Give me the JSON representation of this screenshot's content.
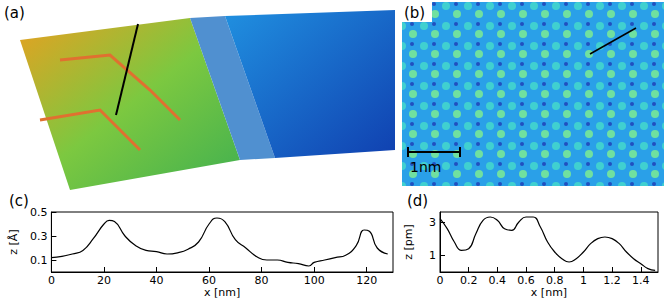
{
  "images": [
    {
      "label": "(a)"
    },
    {
      "label": "(b)",
      "scale_bar": "1nm"
    }
  ],
  "chart_data": [
    {
      "type": "line",
      "title": "(c)",
      "x_label": "x [nm]",
      "y_label": "z [Å]",
      "color": "#000000",
      "grid": false,
      "x": [
        0,
        4,
        8,
        12,
        16,
        20,
        22,
        24,
        28,
        32,
        36,
        40,
        44,
        48,
        52,
        56,
        60,
        63,
        66,
        70,
        74,
        78,
        82,
        86,
        90,
        94,
        98,
        100,
        104,
        108,
        112,
        116,
        119,
        121,
        124,
        128
      ],
      "values": [
        0.12,
        0.13,
        0.15,
        0.18,
        0.28,
        0.4,
        0.43,
        0.42,
        0.3,
        0.22,
        0.18,
        0.17,
        0.15,
        0.16,
        0.19,
        0.25,
        0.4,
        0.45,
        0.42,
        0.27,
        0.2,
        0.13,
        0.1,
        0.1,
        0.08,
        0.07,
        0.05,
        0.08,
        0.1,
        0.12,
        0.14,
        0.22,
        0.35,
        0.34,
        0.2,
        0.15
      ],
      "xlim": [
        0,
        130
      ],
      "xticks": [
        0,
        20,
        40,
        60,
        80,
        100,
        120
      ],
      "ylim": [
        0,
        0.5
      ],
      "yticks": [
        0.1,
        0.3,
        0.5
      ]
    },
    {
      "type": "line",
      "title": "(d)",
      "x_label": "x [nm]",
      "y_label": "z [pm]",
      "color": "#000000",
      "grid": false,
      "x": [
        0,
        0.05,
        0.1,
        0.15,
        0.2,
        0.25,
        0.3,
        0.35,
        0.4,
        0.45,
        0.5,
        0.55,
        0.6,
        0.65,
        0.7,
        0.75,
        0.8,
        0.85,
        0.9,
        0.95,
        1.0,
        1.05,
        1.1,
        1.15,
        1.2,
        1.25,
        1.3,
        1.35,
        1.4,
        1.45,
        1.5
      ],
      "values": [
        3.2,
        2.6,
        1.8,
        1.3,
        1.4,
        2.3,
        3.1,
        3.3,
        3.1,
        2.6,
        2.5,
        3.0,
        3.3,
        3.3,
        2.7,
        1.8,
        1.2,
        0.8,
        0.6,
        0.8,
        1.2,
        1.7,
        2.0,
        2.1,
        2.0,
        1.7,
        1.2,
        0.8,
        0.5,
        0.2,
        0.1
      ],
      "xlim": [
        0,
        1.52
      ],
      "xticks": [
        0,
        0.2,
        0.4,
        0.6,
        0.8,
        1,
        1.2,
        1.4
      ],
      "ylim": [
        0,
        3.6
      ],
      "yticks": [
        1,
        3
      ]
    }
  ]
}
